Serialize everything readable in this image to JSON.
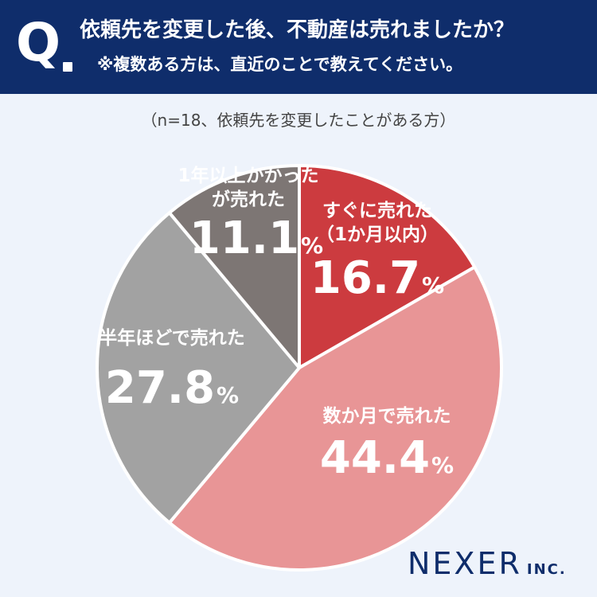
{
  "header": {
    "q_mark": "Q",
    "title": "依頼先を変更した後、不動産は売れましたか？",
    "subtitle": "※複数ある方は、直近のことで教えてください。",
    "background": "#0f2d6b"
  },
  "note": "（n=18、依頼先を変更したことがある方）",
  "chart_data": {
    "type": "pie",
    "start": "12 o'clock",
    "direction": "clockwise",
    "unit": "%",
    "slices": [
      {
        "label_lines": [
          "すぐに売れた",
          "（1か月以内）"
        ],
        "value": 16.7,
        "value_text": "16.7",
        "color": "#cc3b3f"
      },
      {
        "label_lines": [
          "数か月で売れた"
        ],
        "value": 44.4,
        "value_text": "44.4",
        "color": "#e89596"
      },
      {
        "label_lines": [
          "半年ほどで売れた"
        ],
        "value": 27.8,
        "value_text": "27.8",
        "color": "#a2a2a2"
      },
      {
        "label_lines": [
          "1年以上かかった",
          "が売れた"
        ],
        "value": 11.1,
        "value_text": "11.1",
        "color": "#7d7674"
      }
    ]
  },
  "brand": {
    "name": "NEXER",
    "suffix": "INC."
  }
}
